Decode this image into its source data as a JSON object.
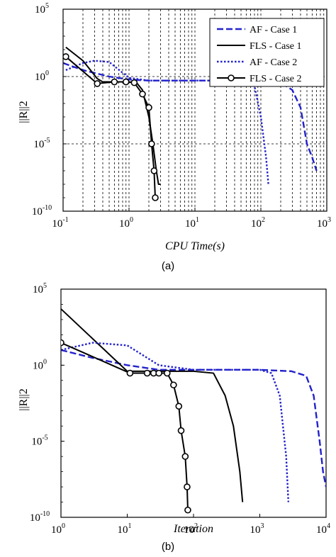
{
  "chart_data": [
    {
      "type": "line",
      "caption": "(a)",
      "xlabel": "CPU Time(s)",
      "ylabel": "||R||2",
      "xscale": "log",
      "yscale": "log",
      "xlim": [
        0.1,
        1000
      ],
      "ylim": [
        1e-10,
        100000
      ],
      "x_tick_labels": [
        {
          "base": "10",
          "exp": "-1"
        },
        {
          "base": "10",
          "exp": "0"
        },
        {
          "base": "10",
          "exp": "1"
        },
        {
          "base": "10",
          "exp": "2"
        },
        {
          "base": "10",
          "exp": "3"
        }
      ],
      "y_tick_labels": [
        {
          "base": "10",
          "exp": "-10"
        },
        {
          "base": "10",
          "exp": "-5"
        },
        {
          "base": "10",
          "exp": "0"
        },
        {
          "base": "10",
          "exp": "5"
        }
      ],
      "grid": "dashed, vertical minor and major lines at each decade; horizontal at 10^0 and 10^-5",
      "legend_position": "top-right",
      "series": [
        {
          "name": "AF - Case 1",
          "style": "dashed",
          "color": "#2222cc",
          "x": [
            0.1,
            0.2,
            0.5,
            1,
            2,
            5,
            10,
            20,
            50,
            100,
            200,
            300,
            400,
            500,
            600,
            700
          ],
          "y": [
            10,
            3,
            1,
            0.6,
            0.5,
            0.5,
            0.5,
            0.5,
            0.5,
            0.45,
            0.35,
            0.1,
            0.005,
            1e-05,
            1e-06,
            1e-07
          ]
        },
        {
          "name": "FLS - Case 1",
          "style": "solid",
          "color": "#000000",
          "x": [
            0.11,
            0.2,
            0.33,
            0.4,
            0.6,
            1.0,
            1.3,
            1.6,
            2.0,
            2.3,
            2.6,
            2.8,
            3.0
          ],
          "y": [
            150,
            15,
            0.7,
            0.4,
            0.4,
            0.4,
            0.35,
            0.1,
            0.001,
            1e-05,
            1e-07,
            1e-08,
            1e-08
          ]
        },
        {
          "name": "AF - Case 2",
          "style": "dotted",
          "color": "#2222cc",
          "x": [
            0.11,
            0.2,
            0.3,
            0.5,
            1,
            2,
            5,
            10,
            20,
            50,
            80,
            100,
            120,
            130
          ],
          "y": [
            3,
            10,
            15,
            12,
            0.8,
            0.5,
            0.5,
            0.5,
            0.5,
            0.45,
            0.2,
            0.001,
            1e-06,
            1e-08
          ]
        },
        {
          "name": "FLS - Case 2",
          "style": "solid-circle",
          "color": "#000000",
          "x": [
            0.11,
            0.33,
            0.6,
            0.9,
            1.2,
            1.6,
            2.0,
            2.2,
            2.4,
            2.5
          ],
          "y": [
            30,
            0.3,
            0.4,
            0.4,
            0.35,
            0.05,
            0.005,
            1e-05,
            1e-07,
            1e-09
          ]
        }
      ]
    },
    {
      "type": "line",
      "caption": "(b)",
      "xlabel": "Iteration",
      "ylabel": "||R||2",
      "xscale": "log",
      "yscale": "log",
      "xlim": [
        1,
        10000
      ],
      "ylim": [
        1e-10,
        100000
      ],
      "x_tick_labels": [
        {
          "base": "10",
          "exp": "0"
        },
        {
          "base": "10",
          "exp": "1"
        },
        {
          "base": "10",
          "exp": "2"
        },
        {
          "base": "10",
          "exp": "3"
        },
        {
          "base": "10",
          "exp": "4"
        }
      ],
      "y_tick_labels": [
        {
          "base": "10",
          "exp": "-10"
        },
        {
          "base": "10",
          "exp": "-5"
        },
        {
          "base": "10",
          "exp": "0"
        },
        {
          "base": "10",
          "exp": "5"
        }
      ],
      "grid": "off",
      "series": [
        {
          "name": "AF - Case 1",
          "style": "dashed",
          "color": "#2222cc",
          "x": [
            1,
            3,
            10,
            30,
            100,
            300,
            1000,
            3000,
            5000,
            6500,
            8000,
            9000,
            10000
          ],
          "y": [
            10,
            3,
            1,
            0.5,
            0.5,
            0.5,
            0.5,
            0.4,
            0.2,
            0.01,
            1e-05,
            1e-07,
            1e-08
          ]
        },
        {
          "name": "FLS - Case 1",
          "style": "solid",
          "color": "#000000",
          "x": [
            1,
            10,
            30,
            100,
            200,
            300,
            400,
            500,
            550
          ],
          "y": [
            5000,
            0.4,
            0.4,
            0.4,
            0.3,
            0.01,
            0.0001,
            1e-07,
            1e-09
          ]
        },
        {
          "name": "AF - Case 2",
          "style": "dotted",
          "color": "#2222cc",
          "x": [
            1,
            3,
            10,
            30,
            100,
            300,
            1000,
            1500,
            2000,
            2500,
            2700
          ],
          "y": [
            10,
            30,
            20,
            1,
            0.5,
            0.5,
            0.5,
            0.3,
            0.01,
            1e-06,
            1e-09
          ]
        },
        {
          "name": "FLS - Case 2",
          "style": "solid-circle",
          "color": "#000000",
          "x": [
            1,
            11,
            20,
            25,
            30,
            40,
            50,
            60,
            65,
            75,
            80,
            82
          ],
          "y": [
            30,
            0.3,
            0.3,
            0.3,
            0.3,
            0.3,
            0.05,
            0.002,
            5e-05,
            1e-06,
            1e-08,
            3e-10
          ]
        }
      ]
    }
  ]
}
